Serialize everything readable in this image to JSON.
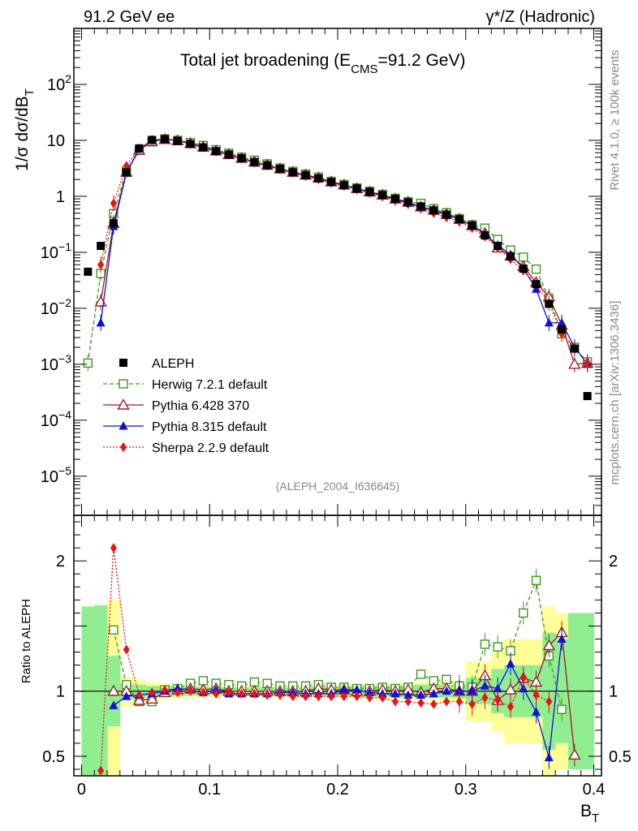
{
  "header": {
    "left": "91.2 GeV ee",
    "right": "γ*/Z (Hadronic)"
  },
  "side_labels": {
    "rivet": "Rivet 4.1.0, ≥ 100k events",
    "mcplots": "mcplots.cern.ch [arXiv:1306.3436]"
  },
  "chart_data": {
    "type": "line",
    "title": "Total jet broadening (E",
    "title_sub": "CMS",
    "title_tail": "=91.2 GeV)",
    "analysis_id": "(ALEPH_2004_I636645)",
    "xlabel": "B",
    "xlabel_sub": "T",
    "ylabel": "1/σ  dσ/dB",
    "ylabel_sub": "T",
    "ratio_ylabel": "Ratio to ALEPH",
    "xlim": [
      -0.006,
      0.406
    ],
    "ylim_log": [
      2e-06,
      1000
    ],
    "ratio_ylim": [
      0.35,
      2.35
    ],
    "x_ticks": [
      0,
      0.1,
      0.2,
      0.3,
      0.4
    ],
    "x_tick_labels": [
      "0",
      "0.1",
      "0.2",
      "0.3",
      "0.4"
    ],
    "y_ticks": [
      {
        "v": 1e-05,
        "base": "10",
        "exp": "−5"
      },
      {
        "v": 0.0001,
        "base": "10",
        "exp": "−4"
      },
      {
        "v": 0.001,
        "base": "10",
        "exp": "−3"
      },
      {
        "v": 0.01,
        "base": "10",
        "exp": "−2"
      },
      {
        "v": 0.1,
        "base": "10",
        "exp": "−1"
      },
      {
        "v": 1,
        "base": "1",
        "exp": ""
      },
      {
        "v": 10,
        "base": "10",
        "exp": ""
      },
      {
        "v": 100,
        "base": "10",
        "exp": "2"
      }
    ],
    "ratio_ticks": [
      0.5,
      1,
      2
    ],
    "ratio_tick_labels": [
      "0.5",
      "1",
      "2"
    ],
    "legend": [
      "ALEPH",
      "Herwig 7.2.1 default",
      "Pythia 6.428 370",
      "Pythia 8.315 default",
      "Sherpa 2.2.9 default"
    ],
    "data_x": [
      0.005,
      0.015,
      0.025,
      0.035,
      0.045,
      0.055,
      0.065,
      0.075,
      0.085,
      0.095,
      0.105,
      0.115,
      0.125,
      0.135,
      0.145,
      0.155,
      0.165,
      0.175,
      0.185,
      0.195,
      0.205,
      0.215,
      0.225,
      0.235,
      0.245,
      0.255,
      0.265,
      0.275,
      0.285,
      0.295,
      0.305,
      0.315,
      0.325,
      0.335,
      0.345,
      0.355,
      0.365,
      0.375,
      0.385,
      0.395
    ],
    "data_y": [
      0.045,
      0.13,
      0.33,
      2.7,
      7.2,
      10.2,
      10.5,
      9.8,
      8.6,
      7.5,
      6.4,
      5.6,
      4.8,
      4.1,
      3.6,
      3.1,
      2.7,
      2.4,
      2.1,
      1.8,
      1.58,
      1.38,
      1.2,
      1.05,
      0.9,
      0.78,
      0.66,
      0.56,
      0.47,
      0.39,
      0.3,
      0.2,
      0.13,
      0.085,
      0.051,
      0.027,
      0.012,
      0.0042,
      0.0019,
      0.00027
    ],
    "band_inner": [
      0.65,
      0.66,
      0.27,
      0.06,
      0.05,
      0.04,
      0.04,
      0.04,
      0.035,
      0.035,
      0.03,
      0.03,
      0.03,
      0.03,
      0.03,
      0.03,
      0.03,
      0.03,
      0.035,
      0.035,
      0.035,
      0.04,
      0.04,
      0.04,
      0.045,
      0.045,
      0.05,
      0.05,
      0.05,
      0.055,
      0.1,
      0.1,
      0.17,
      0.2,
      0.2,
      0.2,
      0.45,
      0.4,
      0.6,
      0.6
    ],
    "band_outer": [
      0.65,
      0.66,
      0.7,
      0.11,
      0.09,
      0.07,
      0.06,
      0.055,
      0.05,
      0.05,
      0.045,
      0.045,
      0.045,
      0.045,
      0.045,
      0.045,
      0.045,
      0.045,
      0.05,
      0.05,
      0.05,
      0.055,
      0.055,
      0.06,
      0.06,
      0.065,
      0.07,
      0.07,
      0.075,
      0.08,
      0.23,
      0.23,
      0.31,
      0.4,
      0.4,
      0.4,
      0.65,
      0.6,
      0.6,
      0.6
    ],
    "series": [
      {
        "name": "Herwig 7.2.1 default",
        "color": "#3a9a1e",
        "marker": "open-square",
        "dash": "5,3",
        "x": [
          0.005,
          0.015,
          0.025,
          0.035,
          0.045,
          0.055,
          0.065,
          0.075,
          0.085,
          0.095,
          0.105,
          0.115,
          0.125,
          0.135,
          0.145,
          0.155,
          0.165,
          0.175,
          0.185,
          0.195,
          0.205,
          0.215,
          0.225,
          0.235,
          0.245,
          0.255,
          0.265,
          0.275,
          0.285,
          0.295,
          0.305,
          0.315,
          0.325,
          0.335,
          0.345,
          0.355,
          0.365,
          0.375,
          0.385,
          0.395
        ],
        "y": [
          0.00105,
          0.042,
          0.49,
          2.85,
          6.6,
          9.4,
          10.6,
          10.0,
          9.1,
          8.1,
          6.8,
          5.9,
          5.0,
          4.4,
          3.8,
          3.2,
          2.8,
          2.5,
          2.2,
          1.85,
          1.63,
          1.41,
          1.23,
          1.08,
          0.92,
          0.8,
          0.75,
          0.6,
          0.51,
          0.4,
          0.31,
          0.27,
          0.17,
          0.11,
          0.082,
          0.05,
          0.015,
          0.0035,
          0.002,
          0.0011
        ],
        "ratio": [
          null,
          null,
          1.47,
          1.05,
          0.92,
          0.92,
          1.01,
          1.02,
          1.06,
          1.08,
          1.06,
          1.05,
          1.04,
          1.07,
          1.06,
          1.04,
          1.04,
          1.04,
          1.05,
          1.03,
          1.03,
          1.02,
          1.02,
          1.03,
          1.02,
          1.03,
          1.13,
          1.08,
          1.09,
          1.04,
          1.03,
          1.36,
          1.34,
          1.31,
          1.6,
          1.85,
          1.27,
          0.86,
          null,
          null
        ]
      },
      {
        "name": "Pythia 6.428 370",
        "color": "#9b1c28",
        "marker": "open-triangle",
        "dash": "",
        "x": [
          0.015,
          0.025,
          0.035,
          0.045,
          0.055,
          0.065,
          0.075,
          0.085,
          0.095,
          0.105,
          0.115,
          0.125,
          0.135,
          0.145,
          0.155,
          0.165,
          0.175,
          0.185,
          0.195,
          0.205,
          0.215,
          0.225,
          0.235,
          0.245,
          0.255,
          0.265,
          0.275,
          0.285,
          0.295,
          0.305,
          0.315,
          0.325,
          0.335,
          0.345,
          0.355,
          0.365,
          0.375,
          0.385,
          0.395
        ],
        "y": [
          0.013,
          0.33,
          2.7,
          6.7,
          9.6,
          10.4,
          9.9,
          8.8,
          7.6,
          6.5,
          5.6,
          4.8,
          4.1,
          3.6,
          3.1,
          2.7,
          2.4,
          2.15,
          1.82,
          1.6,
          1.38,
          1.2,
          1.06,
          0.9,
          0.79,
          0.65,
          0.57,
          0.48,
          0.39,
          0.3,
          0.22,
          0.12,
          0.086,
          0.056,
          0.029,
          0.016,
          0.005,
          0.001,
          0.00105
        ],
        "ratio": [
          null,
          1.0,
          1.0,
          0.93,
          0.94,
          0.99,
          1.01,
          1.02,
          1.01,
          1.02,
          1.0,
          1.0,
          1.0,
          1.0,
          1.0,
          1.0,
          1.0,
          1.02,
          1.01,
          1.01,
          1.0,
          1.0,
          1.01,
          1.0,
          1.01,
          0.99,
          1.02,
          1.02,
          1.0,
          1.0,
          1.12,
          0.93,
          1.01,
          1.1,
          1.07,
          1.35,
          1.45,
          0.51,
          null
        ]
      },
      {
        "name": "Pythia 8.315 default",
        "color": "#1010d8",
        "marker": "filled-triangle",
        "dash": "",
        "x": [
          0.015,
          0.025,
          0.035,
          0.045,
          0.055,
          0.065,
          0.075,
          0.085,
          0.095,
          0.105,
          0.115,
          0.125,
          0.135,
          0.145,
          0.155,
          0.165,
          0.175,
          0.185,
          0.195,
          0.205,
          0.215,
          0.225,
          0.235,
          0.245,
          0.255,
          0.265,
          0.275,
          0.285,
          0.295,
          0.305,
          0.315,
          0.325,
          0.335,
          0.345,
          0.355,
          0.365,
          0.375,
          0.385,
          0.395
        ],
        "y": [
          0.0055,
          0.29,
          2.6,
          7.0,
          10.0,
          10.5,
          10.0,
          8.7,
          7.5,
          6.4,
          5.5,
          4.7,
          4.0,
          3.5,
          3.05,
          2.65,
          2.35,
          2.05,
          1.78,
          1.58,
          1.38,
          1.18,
          1.03,
          0.88,
          0.76,
          0.64,
          0.55,
          0.47,
          0.39,
          0.3,
          0.21,
          0.135,
          0.09,
          0.052,
          0.022,
          0.0055,
          0.0055,
          0.002,
          0.001
        ],
        "ratio": [
          null,
          0.89,
          0.96,
          0.97,
          0.98,
          1.0,
          1.02,
          1.01,
          0.99,
          1.01,
          0.98,
          0.98,
          0.98,
          0.98,
          0.99,
          0.99,
          0.98,
          0.98,
          0.98,
          1.01,
          1.01,
          0.99,
          0.98,
          0.98,
          0.97,
          0.97,
          0.98,
          1.0,
          1.0,
          1.0,
          1.04,
          1.02,
          1.21,
          1.02,
          0.84,
          0.49,
          1.4,
          null,
          null
        ]
      },
      {
        "name": "Sherpa 2.2.9 default",
        "color": "#ee1111",
        "marker": "filled-diamond",
        "dash": "2,2",
        "x": [
          0.015,
          0.025,
          0.035,
          0.045,
          0.055,
          0.065,
          0.075,
          0.085,
          0.095,
          0.105,
          0.115,
          0.125,
          0.135,
          0.145,
          0.155,
          0.165,
          0.175,
          0.185,
          0.195,
          0.205,
          0.215,
          0.225,
          0.235,
          0.245,
          0.255,
          0.265,
          0.275,
          0.285,
          0.295,
          0.305,
          0.315,
          0.325,
          0.335,
          0.345,
          0.355,
          0.365,
          0.375,
          0.385,
          0.395
        ],
        "y": [
          0.06,
          0.75,
          3.5,
          7.0,
          10.2,
          10.6,
          9.8,
          8.6,
          7.4,
          6.3,
          5.5,
          4.7,
          4.0,
          3.5,
          3.0,
          2.6,
          2.3,
          2.0,
          1.73,
          1.52,
          1.32,
          1.14,
          0.99,
          0.83,
          0.72,
          0.6,
          0.5,
          0.42,
          0.35,
          0.27,
          0.19,
          0.12,
          0.075,
          0.047,
          0.027,
          0.0125,
          0.0035,
          0.002,
          0.001
        ],
        "ratio": [
          0.39,
          2.1,
          1.32,
          0.97,
          0.99,
          1.01,
          0.99,
          1.0,
          0.99,
          0.98,
          0.99,
          0.98,
          0.98,
          0.97,
          0.97,
          0.96,
          0.96,
          0.96,
          0.96,
          0.96,
          0.96,
          0.95,
          0.95,
          0.92,
          0.92,
          0.91,
          0.9,
          0.92,
          0.92,
          0.9,
          0.95,
          0.93,
          0.88,
          1.1,
          0.97,
          0.92,
          null,
          null,
          null
        ]
      }
    ]
  }
}
